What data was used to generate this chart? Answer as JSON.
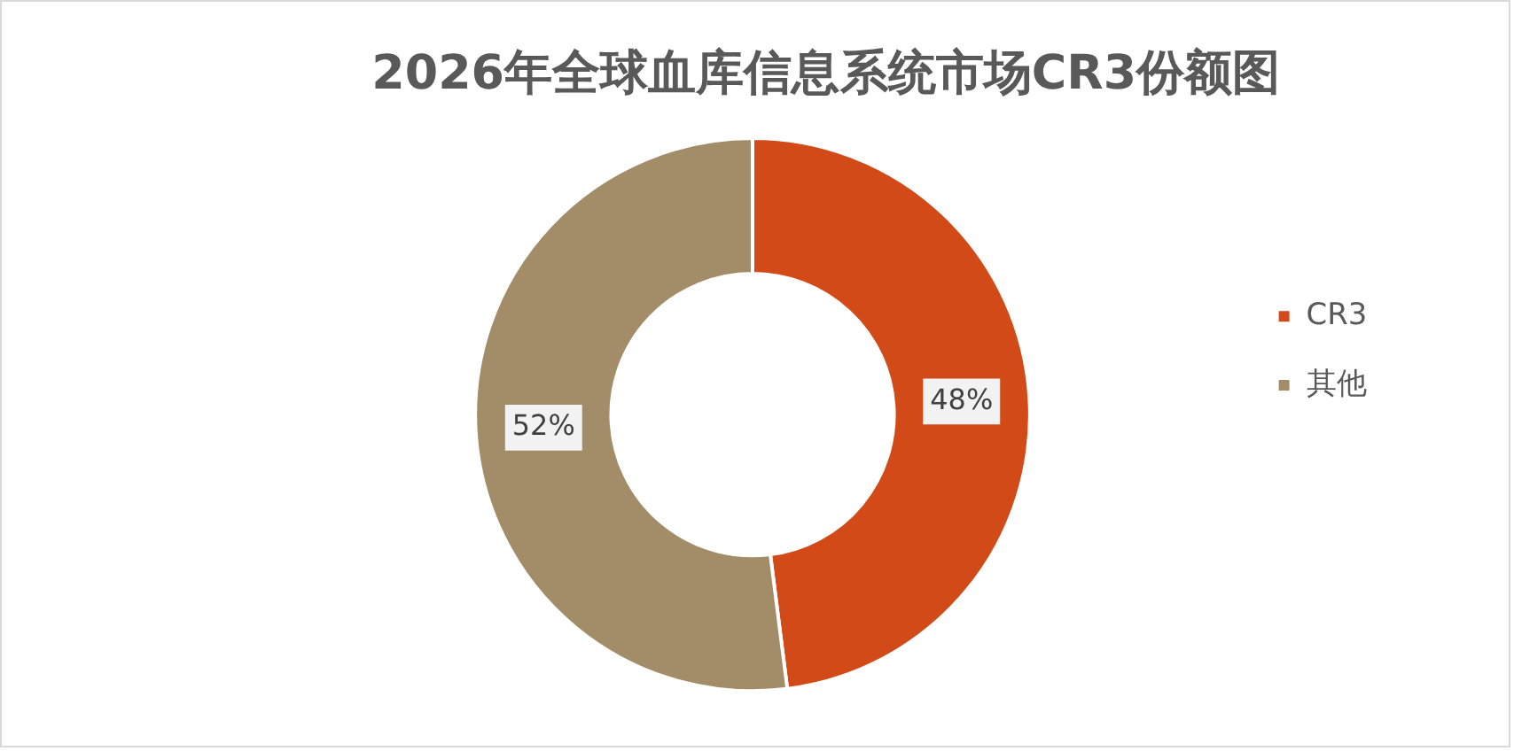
{
  "chart_data": {
    "type": "donut",
    "title": "2026年全球血库信息系统市场CR3份额图",
    "categories": [
      "CR3",
      "其他"
    ],
    "values": [
      48,
      52
    ],
    "colors": [
      "#d24a17",
      "#a38d69"
    ],
    "value_labels": [
      "48%",
      "52%"
    ],
    "legend": "right"
  }
}
